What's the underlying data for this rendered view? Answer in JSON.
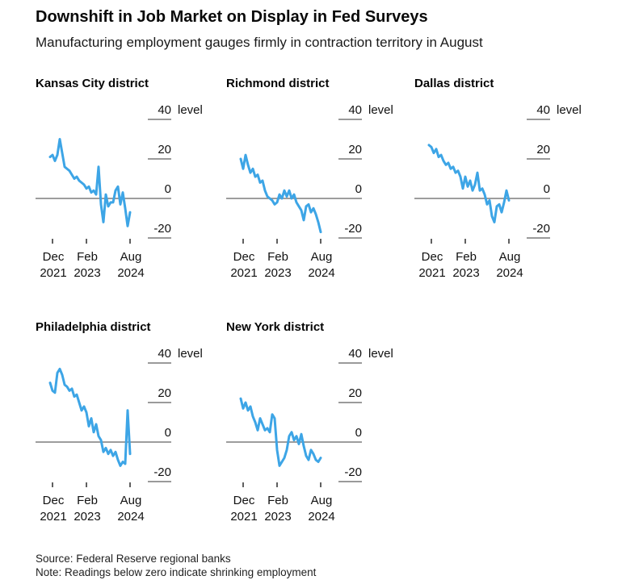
{
  "header": {
    "title": "Downshift in Job Market on Display in Fed Surveys",
    "subtitle": "Manufacturing employment gauges firmly in contraction territory in August"
  },
  "footer": {
    "source": "Source: Federal Reserve regional banks",
    "note": "Note: Readings below zero indicate shrinking employment"
  },
  "colors": {
    "line": "#3DA5E6",
    "tick_dash": "#9a9a9a",
    "zero_line": "#7d7d7d",
    "x_tick": "#2b2b2b",
    "text": "#111111"
  },
  "axis": {
    "unit_label": "level",
    "yticks": [
      40,
      20,
      0,
      -20
    ],
    "ylim": [
      -27,
      46
    ],
    "xticks": [
      {
        "month": "Dec",
        "year": "2021"
      },
      {
        "month": "Feb",
        "year": "2023"
      },
      {
        "month": "Aug",
        "year": "2024"
      }
    ],
    "x_timeline": {
      "start": "Nov 2021",
      "end": "Aug 2024",
      "frequency": "monthly"
    },
    "grid": "zero-baseline-only",
    "legend": "none"
  },
  "chart_data": [
    {
      "type": "line",
      "title": "Kansas City district",
      "x_start": "Nov 2021",
      "x_end": "Aug 2024",
      "frequency": "monthly",
      "values": [
        21,
        22,
        19,
        22,
        30,
        23,
        16,
        15,
        14,
        12,
        10,
        11,
        9,
        8,
        7,
        5,
        6,
        3,
        4,
        2,
        16,
        -3,
        -12,
        2,
        -4,
        -2,
        -2,
        4,
        6,
        -3,
        3,
        -5,
        -14,
        -7
      ]
    },
    {
      "type": "line",
      "title": "Richmond district",
      "x_start": "Nov 2021",
      "x_end": "Aug 2024",
      "frequency": "monthly",
      "values": [
        20,
        15,
        22,
        17,
        13,
        15,
        11,
        12,
        8,
        9,
        4,
        1,
        0,
        -1,
        -3,
        -2,
        2,
        0,
        4,
        1,
        4,
        0,
        2,
        -2,
        -4,
        -6,
        -11,
        -4,
        -3,
        -7,
        -5,
        -8,
        -12,
        -17
      ]
    },
    {
      "type": "line",
      "title": "Dallas district",
      "x_start": "Nov 2021",
      "x_end": "Aug 2024",
      "frequency": "monthly",
      "values": [
        27,
        26,
        23,
        25,
        21,
        22,
        19,
        17,
        18,
        15,
        16,
        13,
        14,
        11,
        5,
        11,
        6,
        9,
        4,
        7,
        13,
        4,
        5,
        2,
        -3,
        -1,
        -9,
        -12,
        -4,
        -3,
        -7,
        -2,
        4,
        -1
      ]
    },
    {
      "type": "line",
      "title": "Philadelphia district",
      "x_start": "Nov 2021",
      "x_end": "Aug 2024",
      "frequency": "monthly",
      "values": [
        30,
        26,
        25,
        35,
        37,
        34,
        29,
        28,
        26,
        27,
        23,
        24,
        20,
        16,
        18,
        15,
        8,
        12,
        5,
        9,
        3,
        1,
        -5,
        -3,
        -6,
        -4,
        -7,
        -5,
        -9,
        -12,
        -10,
        -11,
        16,
        -6
      ]
    },
    {
      "type": "line",
      "title": "New York district",
      "x_start": "Nov 2021",
      "x_end": "Aug 2024",
      "frequency": "monthly",
      "values": [
        22,
        17,
        20,
        16,
        18,
        13,
        10,
        6,
        12,
        9,
        6,
        7,
        5,
        14,
        12,
        -4,
        -12,
        -10,
        -8,
        -4,
        3,
        5,
        1,
        3,
        -1,
        4,
        -2,
        -7,
        -9,
        -4,
        -6,
        -9,
        -10,
        -8
      ]
    }
  ]
}
